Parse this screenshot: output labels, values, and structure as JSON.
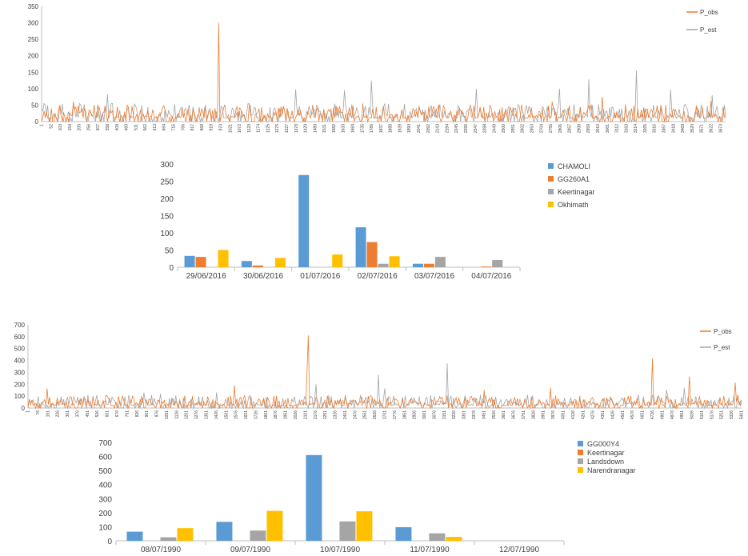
{
  "colors": {
    "obs": "#ED7D31",
    "est": "#A5A5A5",
    "blue": "#5B9BD5",
    "orange": "#ED7D31",
    "gray": "#A5A5A5",
    "yellow": "#FFC000",
    "axis": "#bfbfbf"
  },
  "chart_data": [
    {
      "type": "line",
      "xlim": [
        1,
        3700
      ],
      "ylim": [
        0,
        350
      ],
      "yticks": [
        0,
        50,
        100,
        150,
        200,
        250,
        300,
        350
      ],
      "xticks": [
        1,
        52,
        103,
        154,
        205,
        256,
        307,
        358,
        409,
        460,
        511,
        562,
        613,
        664,
        715,
        766,
        817,
        868,
        919,
        970,
        1021,
        1072,
        1123,
        1174,
        1225,
        1276,
        1327,
        1378,
        1429,
        1480,
        1531,
        1582,
        1633,
        1684,
        1735,
        1786,
        1837,
        1888,
        1939,
        1990,
        2041,
        2092,
        2143,
        2194,
        2245,
        2296,
        2347,
        2398,
        2449,
        2500,
        2551,
        2602,
        2653,
        2704,
        2755,
        2806,
        2857,
        2908,
        2959,
        3010,
        3061,
        3112,
        3163,
        3214,
        3265,
        3316,
        3367,
        3418,
        3469,
        3520,
        3571,
        3622,
        3673
      ],
      "series": [
        {
          "name": "P_obs",
          "peaks": [
            [
              960,
              300
            ],
            [
              175,
              60
            ],
            [
              3030,
              75
            ],
            [
              1735,
              55
            ],
            [
              2760,
              60
            ],
            [
              3620,
              62
            ]
          ]
        },
        {
          "name": "P_est",
          "peaks": [
            [
              3215,
              155
            ],
            [
              2960,
              128
            ],
            [
              1786,
              125
            ],
            [
              1378,
              98
            ],
            [
              1640,
              95
            ],
            [
              2350,
              100
            ],
            [
              2800,
              100
            ],
            [
              3400,
              97
            ],
            [
              3625,
              80
            ],
            [
              358,
              83
            ]
          ]
        }
      ],
      "legend": "top-right"
    },
    {
      "type": "bar",
      "categories": [
        "29/06/2016",
        "30/06/2016",
        "01/07/2016",
        "02/07/2016",
        "03/07/2016",
        "04/07/2016"
      ],
      "ylim": [
        0,
        300
      ],
      "yticks": [
        0,
        50,
        100,
        150,
        200,
        250,
        300
      ],
      "series": [
        {
          "name": "CHAMOLI",
          "values": [
            33,
            18,
            268,
            116,
            10,
            0
          ]
        },
        {
          "name": "GG260A1",
          "values": [
            30,
            5,
            0,
            73,
            10,
            2
          ]
        },
        {
          "name": "Keertinagar",
          "values": [
            0,
            0,
            0,
            10,
            30,
            21
          ]
        },
        {
          "name": "Okhimath",
          "values": [
            50,
            27,
            37,
            32,
            0,
            0
          ]
        }
      ],
      "legend": "right"
    },
    {
      "type": "line",
      "xlim": [
        1,
        5401
      ],
      "ylim": [
        0,
        700
      ],
      "yticks": [
        0,
        100,
        200,
        300,
        400,
        500,
        600,
        700
      ],
      "xticks": [
        1,
        76,
        151,
        226,
        301,
        376,
        451,
        526,
        601,
        676,
        751,
        826,
        901,
        976,
        1051,
        1126,
        1201,
        1276,
        1351,
        1426,
        1501,
        1576,
        1651,
        1726,
        1801,
        1876,
        1951,
        2026,
        2101,
        2176,
        2251,
        2326,
        2401,
        2476,
        2551,
        2626,
        2701,
        2776,
        2851,
        2926,
        3001,
        3076,
        3151,
        3226,
        3301,
        3376,
        3451,
        3526,
        3601,
        3676,
        3751,
        3826,
        3901,
        3976,
        4051,
        4126,
        4201,
        4276,
        4351,
        4426,
        4501,
        4576,
        4651,
        4726,
        4801,
        4876,
        4951,
        5026,
        5101,
        5176,
        5251,
        5326,
        5401
      ],
      "series": [
        {
          "name": "P_obs",
          "peaks": [
            [
              2120,
              610
            ],
            [
              2110,
              310
            ],
            [
              4730,
              415
            ],
            [
              5010,
              265
            ],
            [
              5350,
              215
            ],
            [
              1560,
              190
            ],
            [
              150,
              165
            ],
            [
              3950,
              170
            ],
            [
              3450,
              150
            ]
          ]
        },
        {
          "name": "P_est",
          "peaks": [
            [
              3170,
              375
            ],
            [
              2650,
              280
            ],
            [
              2180,
              200
            ],
            [
              2700,
              165
            ],
            [
              1430,
              130
            ],
            [
              880,
              130
            ],
            [
              4830,
              150
            ],
            [
              4970,
              170
            ],
            [
              1000,
              120
            ]
          ]
        }
      ],
      "legend": "top-right"
    },
    {
      "type": "bar",
      "categories": [
        "08/07/1990",
        "09/07/1990",
        "10/07/1990",
        "11/07/1990",
        "12/07/1990"
      ],
      "ylim": [
        0,
        700
      ],
      "yticks": [
        0,
        100,
        200,
        300,
        400,
        500,
        600,
        700
      ],
      "series": [
        {
          "name": "GG000Y4",
          "values": [
            65,
            135,
            610,
            97,
            0
          ]
        },
        {
          "name": "Keertinagar",
          "values": [
            0,
            0,
            0,
            0,
            0
          ]
        },
        {
          "name": "Landsdown",
          "values": [
            25,
            73,
            138,
            53,
            0
          ]
        },
        {
          "name": "Narendranagar",
          "values": [
            90,
            213,
            210,
            28,
            0
          ]
        }
      ],
      "legend": "right"
    }
  ]
}
